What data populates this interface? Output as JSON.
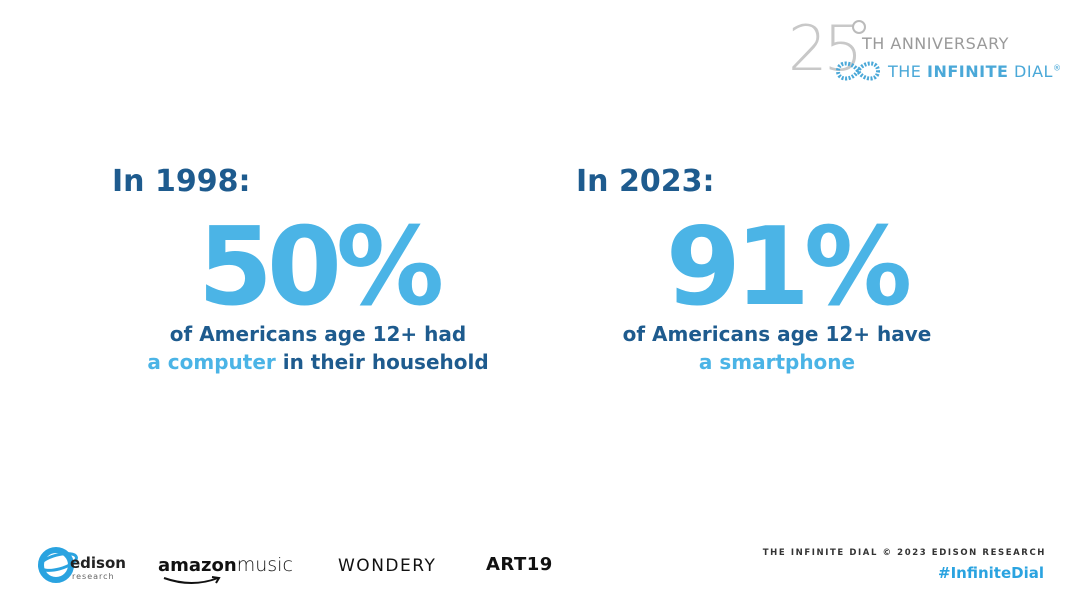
{
  "badge": {
    "number": "25",
    "line1": "TH ANNIVERSARY",
    "line2_prefix": "THE",
    "line2_bold": "INFINITE",
    "line2_suffix": "DIAL",
    "reg": "®"
  },
  "left": {
    "heading": "In 1998:",
    "stat": "50%",
    "desc_line1": "of Americans age 12+ had",
    "desc_hl": "a computer",
    "desc_rest": "in their household"
  },
  "right": {
    "heading": "In 2023:",
    "stat": "91%",
    "desc_line1": "of Americans age 12+ have",
    "desc_hl": "a smartphone"
  },
  "sponsors": {
    "edison": "edison",
    "edison_sub": "research",
    "amazon": "amazon",
    "amazon_music": "music",
    "wondery": "WONDERY",
    "art19": "ART19"
  },
  "footer": {
    "credit": "THE INFINITE DIAL   © 2023 EDISON RESEARCH",
    "hashtag": "#InfiniteDial"
  },
  "colors": {
    "dark_blue": "#1e5b8e",
    "light_blue": "#4bb4e6"
  }
}
